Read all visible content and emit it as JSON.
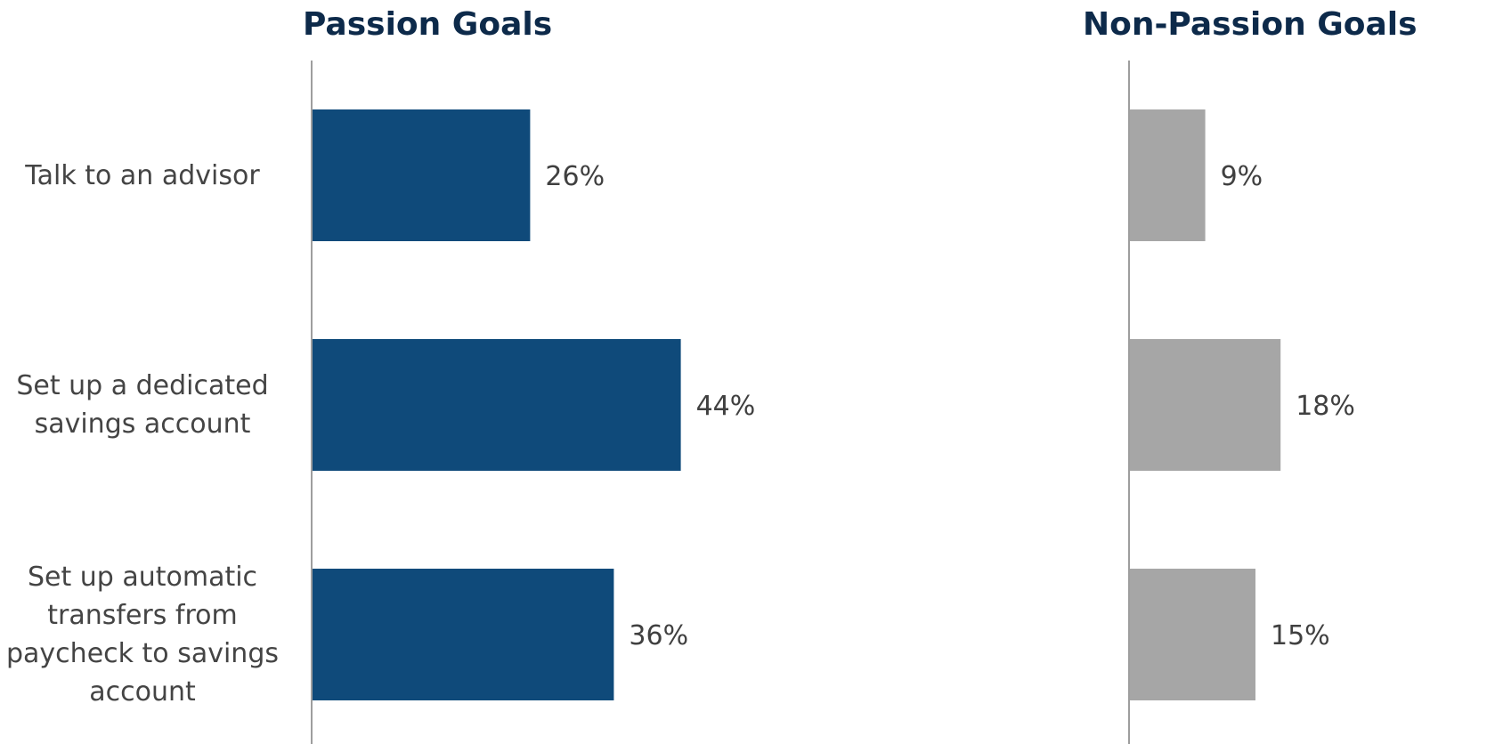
{
  "colors": {
    "title": "#0d2a4a",
    "passion_bar": "#0f4a7a",
    "nonpassion_bar": "#a6a6a6",
    "axis": "#7f7f7f",
    "label_text": "#404040"
  },
  "chart_data": [
    {
      "type": "bar",
      "orientation": "horizontal",
      "title": "Passion Goals",
      "categories": [
        "Talk to an advisor",
        "Set up a dedicated savings account",
        "Set up automatic transfers from paycheck to savings account"
      ],
      "values": [
        26,
        44,
        36
      ],
      "value_labels": [
        "26%",
        "44%",
        "36%"
      ],
      "unit": "%",
      "xlim": [
        0,
        100
      ],
      "grid": false
    },
    {
      "type": "bar",
      "orientation": "horizontal",
      "title": "Non-Passion Goals",
      "categories": [
        "Talk to an advisor",
        "Set up a dedicated savings account",
        "Set up automatic transfers from paycheck to savings account"
      ],
      "values": [
        9,
        18,
        15
      ],
      "value_labels": [
        "9%",
        "18%",
        "15%"
      ],
      "unit": "%",
      "xlim": [
        0,
        100
      ],
      "grid": false
    }
  ],
  "category_lines": [
    [
      "Talk to an advisor"
    ],
    [
      "Set up a dedicated",
      "savings account"
    ],
    [
      "Set up automatic",
      "transfers from",
      "paycheck to savings",
      "account"
    ]
  ]
}
